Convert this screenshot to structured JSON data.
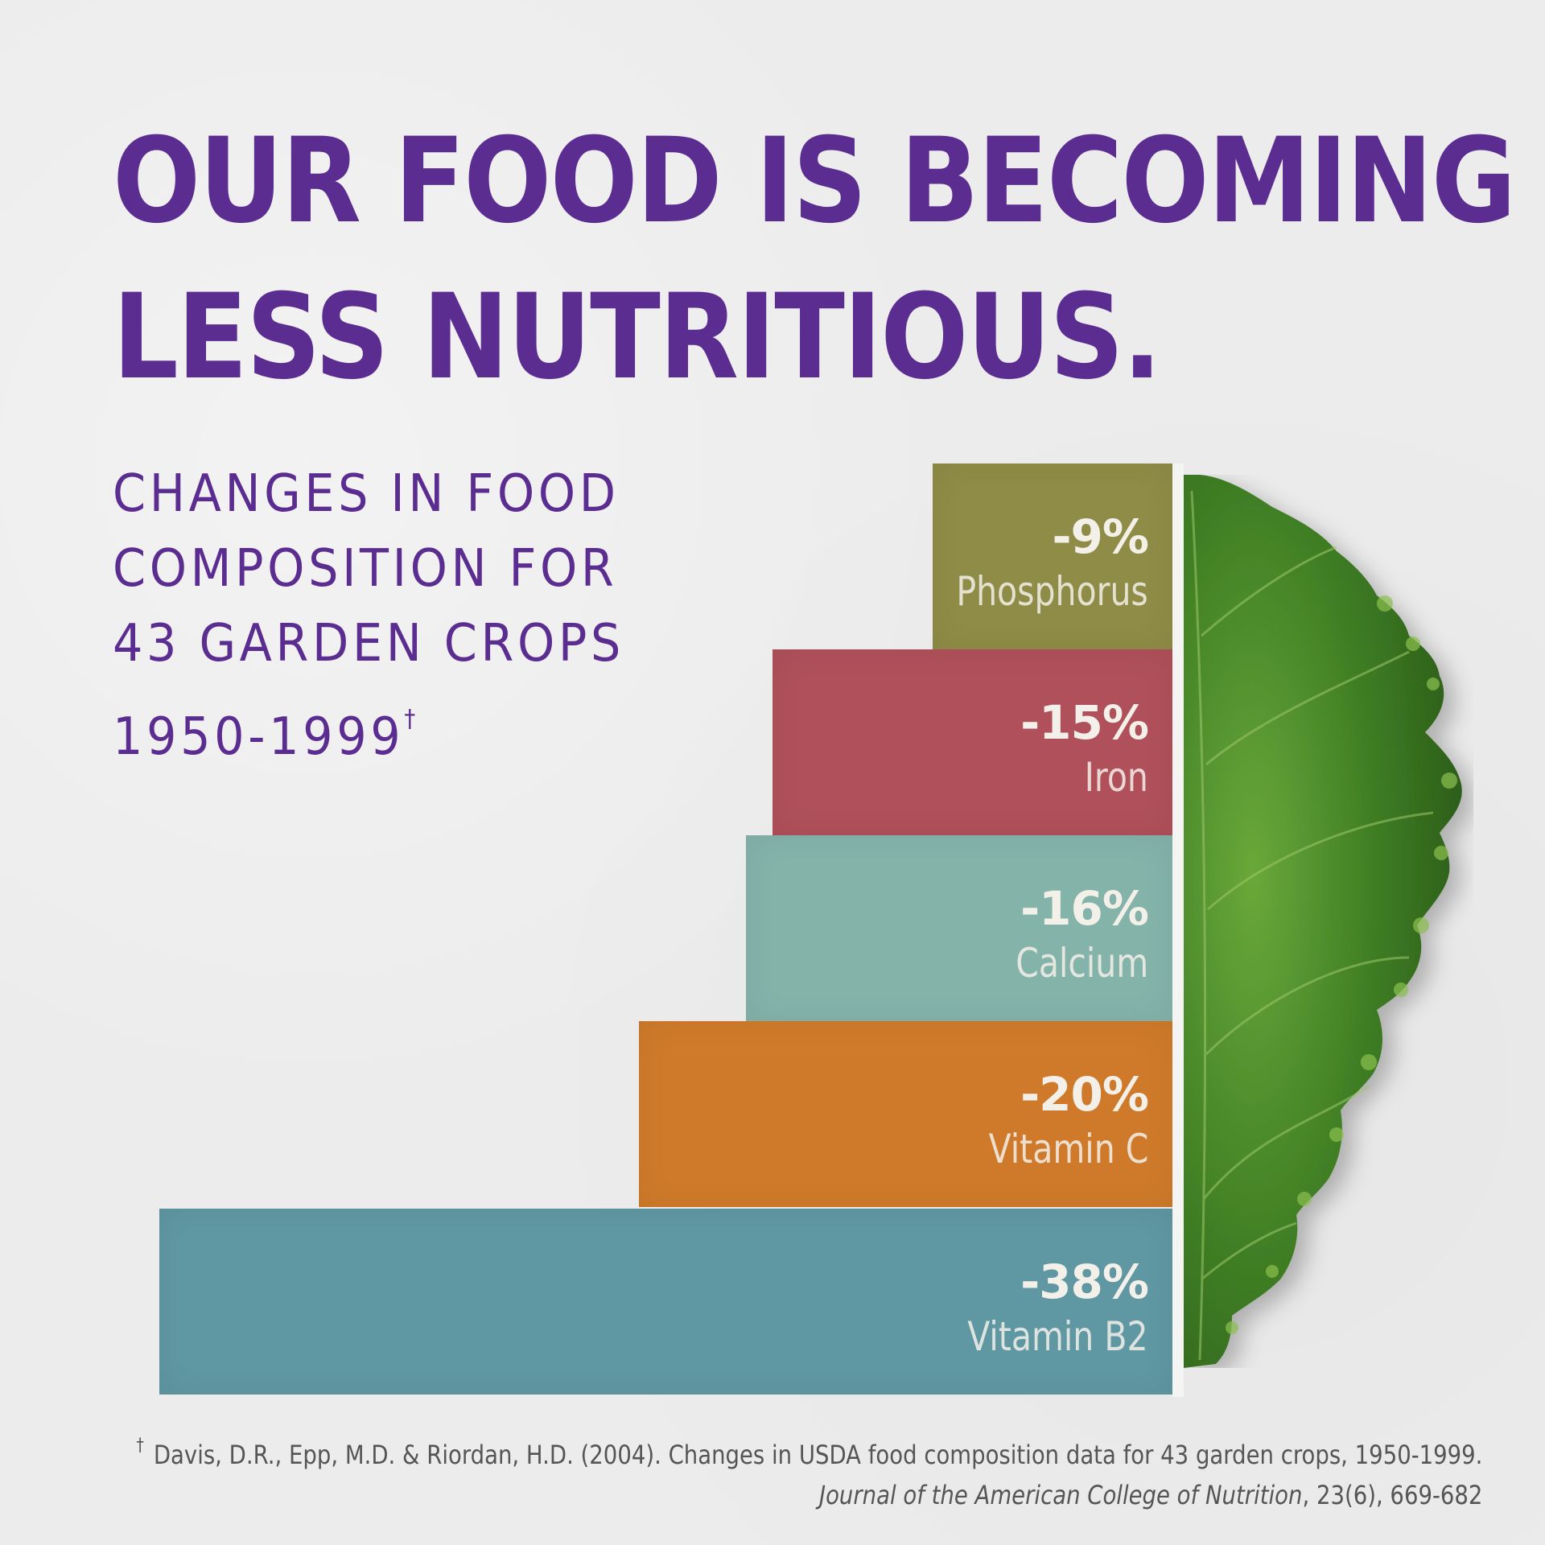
{
  "headline": {
    "line1": "OUR FOOD IS BECOMING",
    "line2": "LESS NUTRITIOUS."
  },
  "subtitle": {
    "line1": "CHANGES IN FOOD",
    "line2": "COMPOSITION FOR",
    "line3": "43 GARDEN CROPS",
    "line4": "1950-1999",
    "marker": "†"
  },
  "chart_data": {
    "type": "bar",
    "orientation": "horizontal",
    "title": "Changes in food composition for 43 garden crops 1950-1999",
    "xlabel": "",
    "ylabel": "",
    "unit": "%",
    "grid": false,
    "legend": "none",
    "xlim": [
      -40,
      0
    ],
    "categories": [
      "Phosphorus",
      "Iron",
      "Calcium",
      "Vitamin C",
      "Vitamin B2"
    ],
    "values": [
      -9,
      -15,
      -16,
      -20,
      -38
    ],
    "value_labels": [
      "-9%",
      "-15%",
      "-16%",
      "-20%",
      "-38%"
    ],
    "colors": [
      "#8f8c47",
      "#b0505a",
      "#84b3aa",
      "#cf7a2a",
      "#5f97a3"
    ]
  },
  "decoration": {
    "image": "kale-leaf"
  },
  "footnote": {
    "marker": "†",
    "citation": "Davis, D.R., Epp, M.D. & Riordan, H.D. (2004). Changes in USDA food composition data for 43 garden crops, 1950-1999.",
    "journal": "Journal of the American College of Nutrition",
    "volume": ", 23(6), 669-682"
  }
}
